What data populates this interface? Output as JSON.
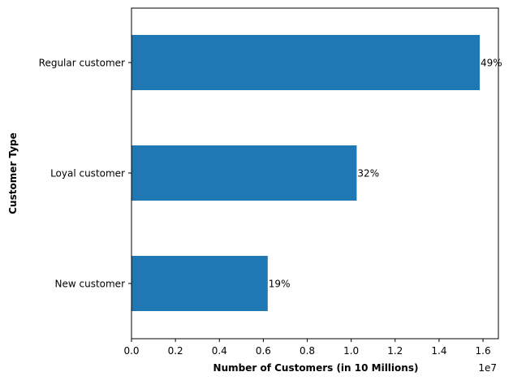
{
  "chart_data": {
    "type": "bar",
    "orientation": "horizontal",
    "categories": [
      "New customer",
      "Loyal customer",
      "Regular customer"
    ],
    "values": [
      6200000,
      10250000,
      15850000
    ],
    "data_labels": [
      "19%",
      "32%",
      "49%"
    ],
    "xlabel": "Number of Customers (in 10 Millions)",
    "ylabel": "Customer Type",
    "xlim": [
      0,
      16700000
    ],
    "xticks": [
      0,
      2000000,
      4000000,
      6000000,
      8000000,
      10000000,
      12000000,
      14000000,
      16000000
    ],
    "xtick_labels": [
      "0.0",
      "0.2",
      "0.4",
      "0.6",
      "0.8",
      "1.0",
      "1.2",
      "1.4",
      "1.6"
    ],
    "x_offset_label": "1e7",
    "bar_color": "#1f77b4",
    "grid": false,
    "legend": "none"
  }
}
